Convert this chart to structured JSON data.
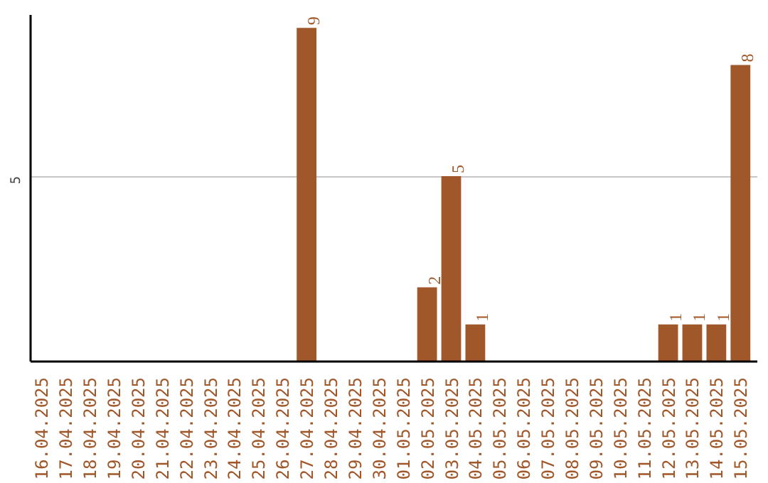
{
  "chart_data": {
    "type": "bar",
    "categories": [
      "16.04.2025",
      "17.04.2025",
      "18.04.2025",
      "19.04.2025",
      "20.04.2025",
      "21.04.2025",
      "22.04.2025",
      "23.04.2025",
      "24.04.2025",
      "25.04.2025",
      "26.04.2025",
      "27.04.2025",
      "28.04.2025",
      "29.04.2025",
      "30.04.2025",
      "01.05.2025",
      "02.05.2025",
      "03.05.2025",
      "04.05.2025",
      "05.05.2025",
      "06.05.2025",
      "07.05.2025",
      "08.05.2025",
      "09.05.2025",
      "10.05.2025",
      "11.05.2025",
      "12.05.2025",
      "13.05.2025",
      "14.05.2025",
      "15.05.2025"
    ],
    "values": [
      0,
      0,
      0,
      0,
      0,
      0,
      0,
      0,
      0,
      0,
      0,
      9,
      0,
      0,
      0,
      0,
      2,
      5,
      1,
      0,
      0,
      0,
      0,
      0,
      0,
      0,
      1,
      1,
      1,
      8
    ],
    "value_labels": [
      null,
      null,
      null,
      null,
      null,
      null,
      null,
      null,
      null,
      null,
      null,
      "9",
      null,
      null,
      null,
      null,
      "2",
      "5",
      "1",
      null,
      null,
      null,
      null,
      null,
      null,
      null,
      "1",
      "1",
      "1",
      "8"
    ],
    "color": "#a0572a",
    "ylim": [
      0,
      9.35
    ],
    "yticks": [
      5
    ],
    "grid": "y"
  }
}
